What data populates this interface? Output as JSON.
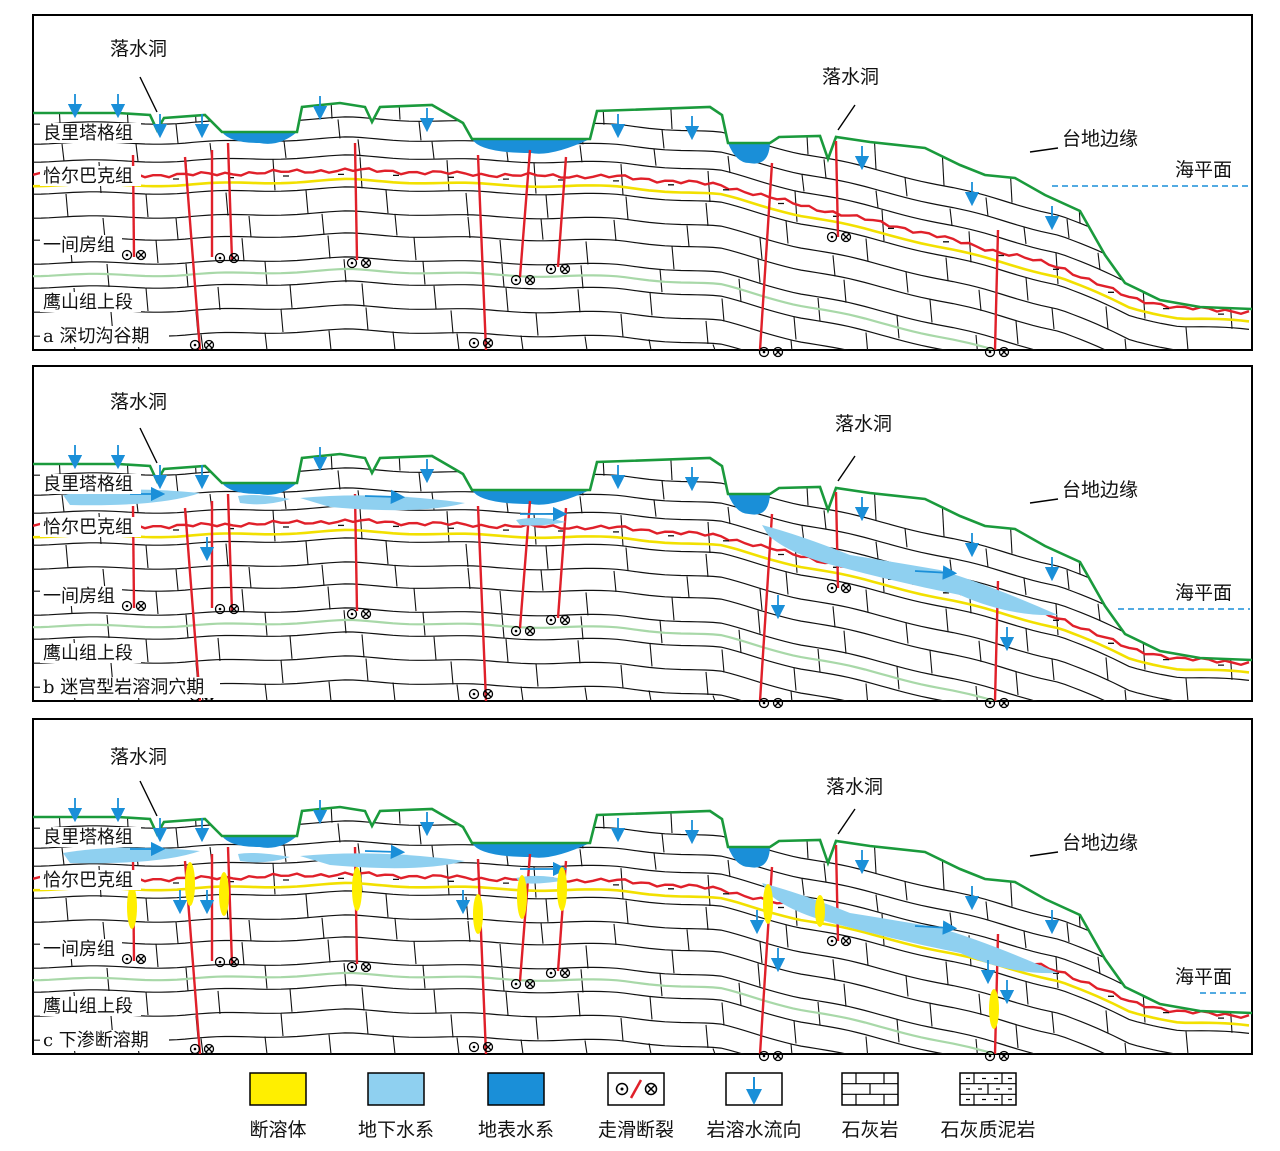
{
  "panels": [
    {
      "caption": "a 深切沟谷期",
      "sinkhole_left": "落水洞",
      "sinkhole_right": "落水洞",
      "edge": "台地边缘",
      "sea": "海平面",
      "formations": [
        "良里塔格组",
        "恰尔巴克组",
        "一间房组",
        "鹰山组上段"
      ]
    },
    {
      "caption": "b 迷宫型岩溶洞穴期",
      "sinkhole_left": "落水洞",
      "sinkhole_right": "落水洞",
      "edge": "台地边缘",
      "sea": "海平面",
      "formations": [
        "良里塔格组",
        "恰尔巴克组",
        "一间房组",
        "鹰山组上段"
      ]
    },
    {
      "caption": "c 下渗断溶期",
      "sinkhole_left": "落水洞",
      "sinkhole_right": "落水洞",
      "edge": "台地边缘",
      "sea": "海平面",
      "formations": [
        "良里塔格组",
        "恰尔巴克组",
        "一间房组",
        "鹰山组上段"
      ]
    }
  ],
  "legend": [
    {
      "label": "断溶体",
      "icon": "fault-karst-swatch"
    },
    {
      "label": "地下水系",
      "icon": "groundwater-swatch"
    },
    {
      "label": "地表水系",
      "icon": "surface-water-swatch"
    },
    {
      "label": "走滑断裂",
      "icon": "strike-slip-fault-symbol"
    },
    {
      "label": "岩溶水流向",
      "icon": "karst-flow-arrow"
    },
    {
      "label": "石灰岩",
      "icon": "limestone-pattern"
    },
    {
      "label": "石灰质泥岩",
      "icon": "calcareous-mudstone-pattern"
    }
  ],
  "colors": {
    "surface": "#1a9a3c",
    "red_bed": "#e0202a",
    "yellow_bed": "#f2e000",
    "green_bed": "#a8d8a8",
    "groundwater": "#8fd0f0",
    "surface_water": "#1a8fd8",
    "arrow": "#1a8fd8",
    "fault_karst": "#ffef00"
  }
}
